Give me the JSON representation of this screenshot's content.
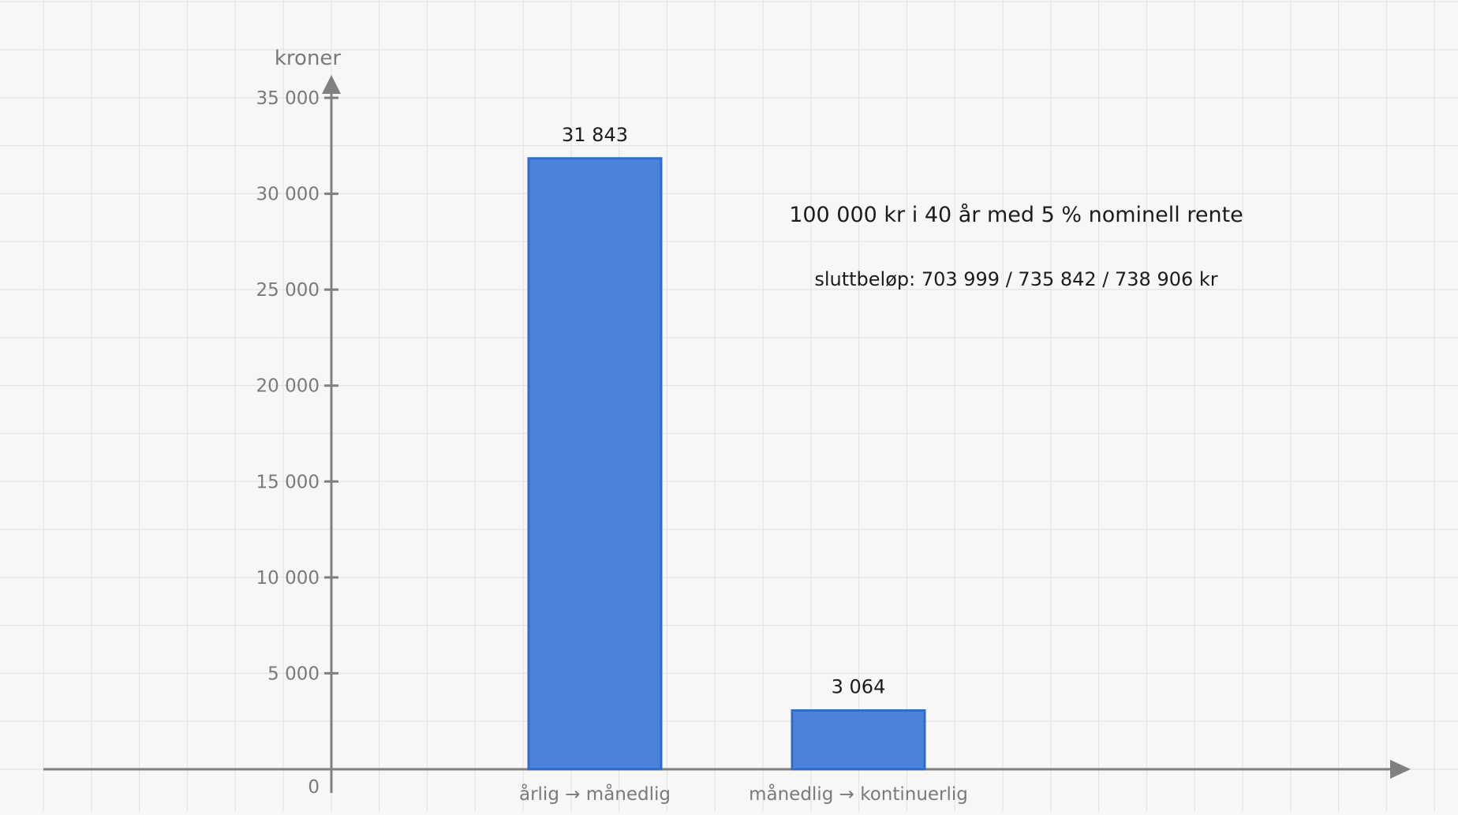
{
  "chart_data": {
    "type": "bar",
    "categories": [
      "årlig → månedlig",
      "månedlig → kontinuerlig"
    ],
    "values": [
      31843,
      3064
    ],
    "data_labels": [
      "31 843",
      "3 064"
    ],
    "ylabel": "kroner",
    "ylim": [
      0,
      35000
    ],
    "yticks": [
      0,
      5000,
      10000,
      15000,
      20000,
      25000,
      30000,
      35000
    ],
    "ytick_labels": [
      "0",
      "5 000",
      "10 000",
      "15 000",
      "20 000",
      "25 000",
      "30 000",
      "35 000"
    ],
    "annotations": [
      "100 000 kr i 40 år med 5 % nominell rente",
      "sluttbeløp: 703 999 / 735 842 / 738 906 kr"
    ],
    "grid": true,
    "bar_color": "#4a83d9",
    "bar_edge_color": "#2f6ccc"
  }
}
